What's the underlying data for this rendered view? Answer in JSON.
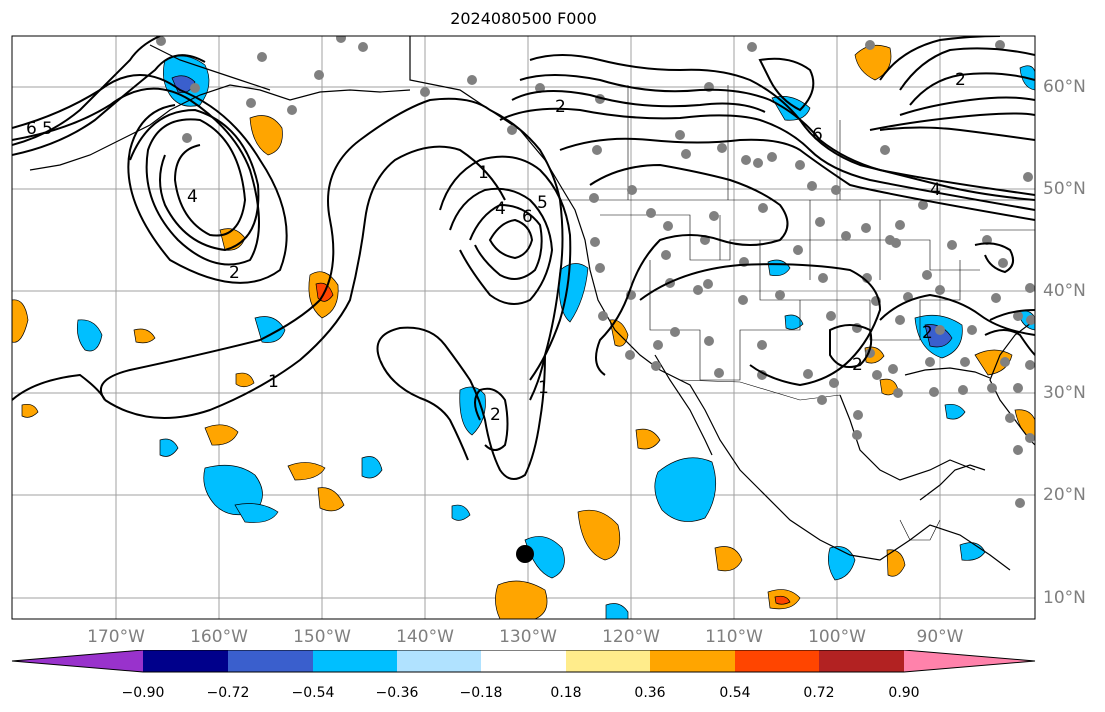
{
  "title": "2024080500 F000",
  "lon_labels": [
    "170°W",
    "160°W",
    "150°W",
    "140°W",
    "130°W",
    "120°W",
    "110°W",
    "100°W",
    "90°W"
  ],
  "lat_labels": [
    "60°N",
    "50°N",
    "40°N",
    "30°N",
    "20°N",
    "10°N"
  ],
  "colorbar": {
    "ticks": [
      "−0.90",
      "−0.72",
      "−0.54",
      "−0.36",
      "−0.18",
      "0.18",
      "0.36",
      "0.54",
      "0.72",
      "0.90"
    ],
    "colors": [
      "#9932cc",
      "#00008b",
      "#3a5fcd",
      "#00bfff",
      "#b0e2ff",
      "#ffffff",
      "#ffec8b",
      "#ffa500",
      "#ff4500",
      "#b22222",
      "#ff82ab"
    ]
  },
  "contour_labels": [
    "6",
    "5",
    "4",
    "2",
    "1",
    "2",
    "6",
    "5",
    "4",
    "1",
    "2",
    "1",
    "2",
    "6",
    "4",
    "2",
    "2"
  ],
  "colors": {
    "positive": "#ffa500",
    "negative": "#00bfff",
    "strong_positive": "#ff4500",
    "strong_negative": "#3a5fcd",
    "stations": "#808080",
    "grid": "#a0a0a0"
  }
}
